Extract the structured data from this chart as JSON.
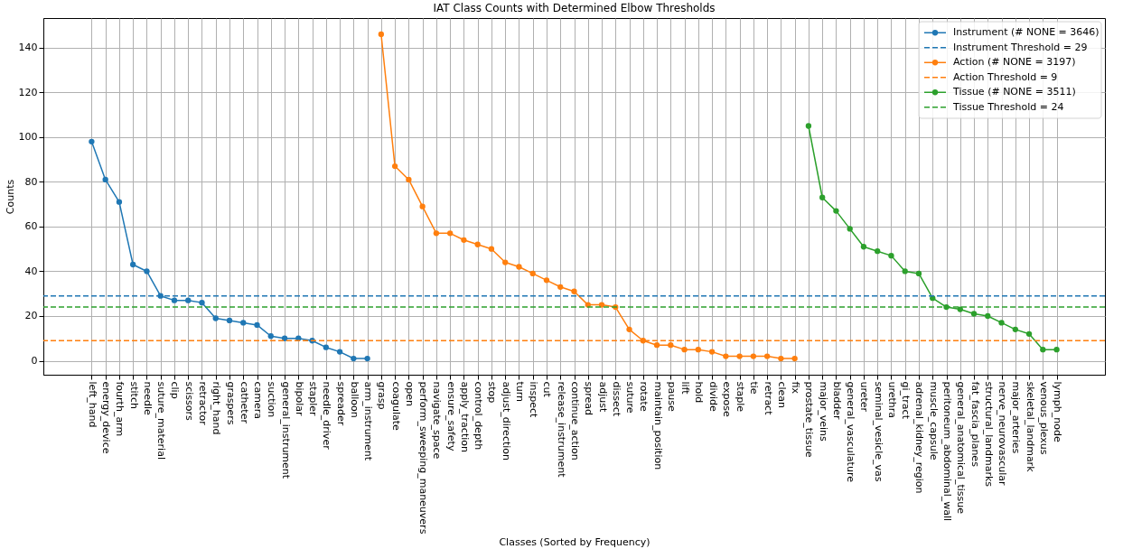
{
  "chart_data": {
    "type": "line",
    "title": "IAT Class Counts with Determined Elbow Thresholds",
    "xlabel": "Classes (Sorted by Frequency)",
    "ylabel": "Counts",
    "categories": [
      "left_hand",
      "energy_device",
      "fourth_arm",
      "stitch",
      "needle",
      "suture_material",
      "clip",
      "scissors",
      "retractor",
      "right_hand",
      "graspers",
      "catheter",
      "camera",
      "suction",
      "general_instrument",
      "bipolar",
      "stapler",
      "needle_driver",
      "spreader",
      "balloon",
      "arm_instrument",
      "grasp",
      "coagulate",
      "open",
      "perform_sweeping_maneuvers",
      "navigate_space",
      "ensure_safety",
      "apply_traction",
      "control_depth",
      "stop",
      "adjust_direction",
      "turn",
      "inspect",
      "cut",
      "release_instrument",
      "continue_action",
      "spread",
      "adjust",
      "dissect",
      "suture",
      "rotate",
      "maintain_position",
      "pause",
      "lift",
      "hold",
      "divide",
      "expose",
      "staple",
      "tie",
      "retract",
      "clean",
      "fix",
      "prostate_tissue",
      "major_veins",
      "bladder",
      "general_vasculature",
      "ureter",
      "seminal_vesicle_vas",
      "urethra",
      "gi_tract",
      "adrenal_kidney_region",
      "muscle_capsule",
      "peritoneum_abdominal_wall",
      "general_anatomical_tissue",
      "fat_fascia_planes",
      "structural_landmarks",
      "nerve_neurovascular",
      "major_arteries",
      "skeletal_landmark",
      "venous_plexus",
      "lymph_node"
    ],
    "series": [
      {
        "name": "Instrument (# NONE = 3646)",
        "color": "#1f77b4",
        "values": [
          98,
          81,
          71,
          43,
          40,
          29,
          27,
          27,
          26,
          19,
          18,
          17,
          16,
          11,
          10,
          10,
          9,
          6,
          4,
          1,
          1,
          null,
          null,
          null,
          null,
          null,
          null,
          null,
          null,
          null,
          null,
          null,
          null,
          null,
          null,
          null,
          null,
          null,
          null,
          null,
          null,
          null,
          null,
          null,
          null,
          null,
          null,
          null,
          null,
          null,
          null,
          null,
          null,
          null,
          null,
          null,
          null,
          null,
          null,
          null,
          null,
          null,
          null,
          null,
          null,
          null,
          null,
          null,
          null,
          null,
          null
        ]
      },
      {
        "name": "Action (# NONE = 3197)",
        "color": "#ff7f0e",
        "values": [
          null,
          null,
          null,
          null,
          null,
          null,
          null,
          null,
          null,
          null,
          null,
          null,
          null,
          null,
          null,
          null,
          null,
          null,
          null,
          null,
          null,
          146,
          87,
          81,
          69,
          57,
          57,
          54,
          52,
          50,
          44,
          42,
          39,
          36,
          33,
          31,
          25,
          25,
          24,
          14,
          9,
          7,
          7,
          5,
          5,
          4,
          2,
          2,
          2,
          2,
          1,
          1,
          null,
          null,
          null,
          null,
          null,
          null,
          null,
          null,
          null,
          null,
          null,
          null,
          null,
          null,
          null,
          null,
          null,
          null,
          null
        ]
      },
      {
        "name": "Tissue (# NONE = 3511)",
        "color": "#2ca02c",
        "values": [
          null,
          null,
          null,
          null,
          null,
          null,
          null,
          null,
          null,
          null,
          null,
          null,
          null,
          null,
          null,
          null,
          null,
          null,
          null,
          null,
          null,
          null,
          null,
          null,
          null,
          null,
          null,
          null,
          null,
          null,
          null,
          null,
          null,
          null,
          null,
          null,
          null,
          null,
          null,
          null,
          null,
          null,
          null,
          null,
          null,
          null,
          null,
          null,
          null,
          null,
          null,
          null,
          105,
          73,
          67,
          59,
          51,
          49,
          47,
          40,
          39,
          28,
          24,
          23,
          21,
          20,
          17,
          14,
          12,
          5,
          5
        ]
      }
    ],
    "ref_lines": [
      {
        "axis": "y",
        "value": 29,
        "label": "Instrument Threshold = 29",
        "color": "#1f77b4",
        "line_style": "dashed"
      },
      {
        "axis": "y",
        "value": 9,
        "label": "Action Threshold = 9",
        "color": "#ff7f0e",
        "line_style": "dashed"
      },
      {
        "axis": "y",
        "value": 24,
        "label": "Tissue Threshold = 24",
        "color": "#2ca02c",
        "line_style": "dashed"
      }
    ],
    "ylim": [
      -6.25,
      153.25
    ],
    "yticks": [
      0,
      20,
      40,
      60,
      80,
      100,
      120,
      140
    ],
    "grid": true,
    "legend": "top right",
    "marker": "circle",
    "line_style": "solid"
  }
}
